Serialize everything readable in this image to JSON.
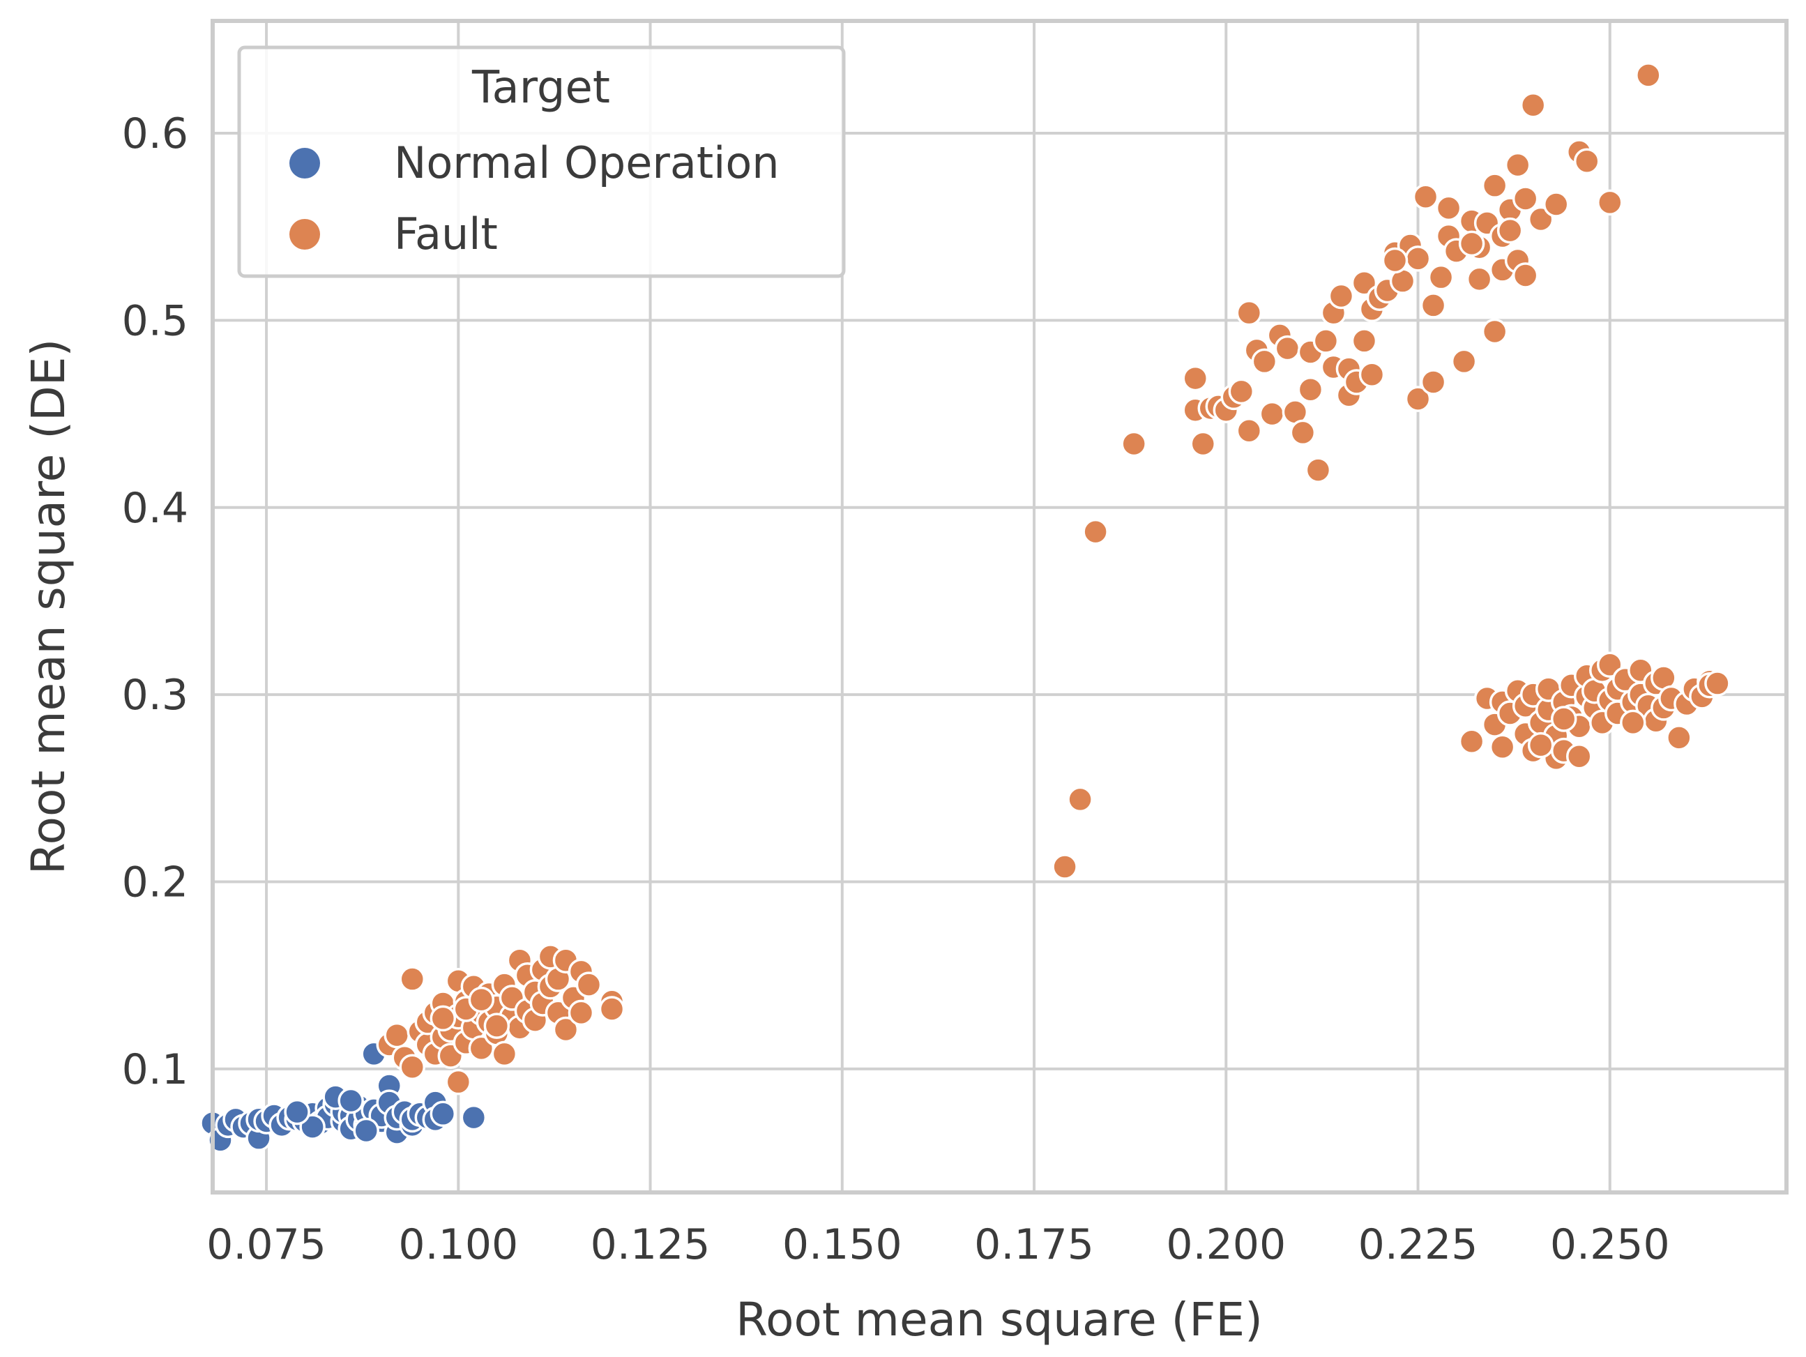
{
  "chart_data": {
    "type": "scatter",
    "title": "",
    "xlabel": "Root mean square (FE)",
    "ylabel": "Root mean square (DE)",
    "xlim": [
      0.068,
      0.273
    ],
    "ylim": [
      0.034,
      0.66
    ],
    "xticks": [
      0.075,
      0.1,
      0.125,
      0.15,
      0.175,
      0.2,
      0.225,
      0.25
    ],
    "xtick_labels": [
      "0.075",
      "0.100",
      "0.125",
      "0.150",
      "0.175",
      "0.200",
      "0.225",
      "0.250"
    ],
    "yticks": [
      0.1,
      0.2,
      0.3,
      0.4,
      0.5,
      0.6
    ],
    "ytick_labels": [
      "0.1",
      "0.2",
      "0.3",
      "0.4",
      "0.5",
      "0.6"
    ],
    "grid": true,
    "legend": {
      "title": "Target",
      "position": "top-left"
    },
    "series": [
      {
        "name": "Normal Operation",
        "color": "#4c72b0",
        "points": [
          [
            0.068,
            0.071
          ],
          [
            0.069,
            0.062
          ],
          [
            0.07,
            0.07
          ],
          [
            0.071,
            0.073
          ],
          [
            0.072,
            0.069
          ],
          [
            0.073,
            0.071
          ],
          [
            0.074,
            0.063
          ],
          [
            0.074,
            0.073
          ],
          [
            0.075,
            0.072
          ],
          [
            0.076,
            0.075
          ],
          [
            0.077,
            0.07
          ],
          [
            0.078,
            0.074
          ],
          [
            0.079,
            0.073
          ],
          [
            0.08,
            0.072
          ],
          [
            0.081,
            0.076
          ],
          [
            0.082,
            0.071
          ],
          [
            0.083,
            0.079
          ],
          [
            0.083,
            0.074
          ],
          [
            0.084,
            0.081
          ],
          [
            0.085,
            0.072
          ],
          [
            0.085,
            0.077
          ],
          [
            0.086,
            0.075
          ],
          [
            0.086,
            0.068
          ],
          [
            0.087,
            0.08
          ],
          [
            0.087,
            0.073
          ],
          [
            0.088,
            0.07
          ],
          [
            0.088,
            0.076
          ],
          [
            0.089,
            0.078
          ],
          [
            0.089,
            0.108
          ],
          [
            0.09,
            0.072
          ],
          [
            0.09,
            0.075
          ],
          [
            0.091,
            0.091
          ],
          [
            0.091,
            0.082
          ],
          [
            0.092,
            0.066
          ],
          [
            0.092,
            0.074
          ],
          [
            0.093,
            0.077
          ],
          [
            0.094,
            0.07
          ],
          [
            0.094,
            0.073
          ],
          [
            0.095,
            0.076
          ],
          [
            0.096,
            0.074
          ],
          [
            0.097,
            0.082
          ],
          [
            0.097,
            0.073
          ],
          [
            0.098,
            0.076
          ],
          [
            0.102,
            0.074
          ],
          [
            0.084,
            0.085
          ],
          [
            0.081,
            0.069
          ],
          [
            0.086,
            0.083
          ],
          [
            0.088,
            0.067
          ],
          [
            0.079,
            0.077
          ]
        ]
      },
      {
        "name": "Fault",
        "color": "#dd8452",
        "points": [
          [
            0.091,
            0.113
          ],
          [
            0.092,
            0.118
          ],
          [
            0.093,
            0.106
          ],
          [
            0.094,
            0.148
          ],
          [
            0.094,
            0.101
          ],
          [
            0.095,
            0.12
          ],
          [
            0.096,
            0.113
          ],
          [
            0.096,
            0.125
          ],
          [
            0.097,
            0.108
          ],
          [
            0.097,
            0.13
          ],
          [
            0.098,
            0.117
          ],
          [
            0.098,
            0.135
          ],
          [
            0.099,
            0.107
          ],
          [
            0.099,
            0.121
          ],
          [
            0.1,
            0.093
          ],
          [
            0.1,
            0.147
          ],
          [
            0.1,
            0.128
          ],
          [
            0.101,
            0.114
          ],
          [
            0.101,
            0.136
          ],
          [
            0.102,
            0.144
          ],
          [
            0.102,
            0.122
          ],
          [
            0.103,
            0.13
          ],
          [
            0.103,
            0.111
          ],
          [
            0.104,
            0.14
          ],
          [
            0.104,
            0.125
          ],
          [
            0.105,
            0.133
          ],
          [
            0.105,
            0.119
          ],
          [
            0.106,
            0.108
          ],
          [
            0.106,
            0.145
          ],
          [
            0.107,
            0.128
          ],
          [
            0.107,
            0.138
          ],
          [
            0.108,
            0.158
          ],
          [
            0.108,
            0.122
          ],
          [
            0.109,
            0.15
          ],
          [
            0.109,
            0.131
          ],
          [
            0.11,
            0.141
          ],
          [
            0.11,
            0.126
          ],
          [
            0.111,
            0.153
          ],
          [
            0.111,
            0.135
          ],
          [
            0.112,
            0.16
          ],
          [
            0.112,
            0.144
          ],
          [
            0.113,
            0.13
          ],
          [
            0.113,
            0.148
          ],
          [
            0.114,
            0.158
          ],
          [
            0.114,
            0.121
          ],
          [
            0.115,
            0.138
          ],
          [
            0.116,
            0.152
          ],
          [
            0.116,
            0.13
          ],
          [
            0.117,
            0.145
          ],
          [
            0.12,
            0.136
          ],
          [
            0.12,
            0.132
          ],
          [
            0.101,
            0.132
          ],
          [
            0.103,
            0.137
          ],
          [
            0.098,
            0.127
          ],
          [
            0.105,
            0.123
          ],
          [
            0.179,
            0.208
          ],
          [
            0.181,
            0.244
          ],
          [
            0.183,
            0.387
          ],
          [
            0.188,
            0.434
          ],
          [
            0.196,
            0.469
          ],
          [
            0.196,
            0.452
          ],
          [
            0.197,
            0.434
          ],
          [
            0.198,
            0.453
          ],
          [
            0.199,
            0.454
          ],
          [
            0.2,
            0.452
          ],
          [
            0.201,
            0.459
          ],
          [
            0.202,
            0.462
          ],
          [
            0.203,
            0.441
          ],
          [
            0.203,
            0.504
          ],
          [
            0.204,
            0.484
          ],
          [
            0.205,
            0.478
          ],
          [
            0.206,
            0.45
          ],
          [
            0.207,
            0.492
          ],
          [
            0.208,
            0.485
          ],
          [
            0.209,
            0.451
          ],
          [
            0.21,
            0.44
          ],
          [
            0.211,
            0.463
          ],
          [
            0.211,
            0.483
          ],
          [
            0.212,
            0.42
          ],
          [
            0.213,
            0.489
          ],
          [
            0.214,
            0.504
          ],
          [
            0.214,
            0.475
          ],
          [
            0.215,
            0.513
          ],
          [
            0.216,
            0.46
          ],
          [
            0.216,
            0.474
          ],
          [
            0.217,
            0.467
          ],
          [
            0.218,
            0.489
          ],
          [
            0.218,
            0.52
          ],
          [
            0.219,
            0.506
          ],
          [
            0.219,
            0.471
          ],
          [
            0.22,
            0.512
          ],
          [
            0.221,
            0.516
          ],
          [
            0.222,
            0.536
          ],
          [
            0.223,
            0.521
          ],
          [
            0.224,
            0.54
          ],
          [
            0.225,
            0.458
          ],
          [
            0.225,
            0.533
          ],
          [
            0.226,
            0.566
          ],
          [
            0.227,
            0.508
          ],
          [
            0.227,
            0.467
          ],
          [
            0.228,
            0.523
          ],
          [
            0.229,
            0.545
          ],
          [
            0.229,
            0.56
          ],
          [
            0.23,
            0.537
          ],
          [
            0.231,
            0.478
          ],
          [
            0.232,
            0.553
          ],
          [
            0.233,
            0.522
          ],
          [
            0.233,
            0.539
          ],
          [
            0.234,
            0.552
          ],
          [
            0.235,
            0.494
          ],
          [
            0.235,
            0.572
          ],
          [
            0.236,
            0.527
          ],
          [
            0.236,
            0.545
          ],
          [
            0.237,
            0.559
          ],
          [
            0.238,
            0.532
          ],
          [
            0.238,
            0.583
          ],
          [
            0.239,
            0.524
          ],
          [
            0.239,
            0.565
          ],
          [
            0.24,
            0.615
          ],
          [
            0.241,
            0.554
          ],
          [
            0.243,
            0.562
          ],
          [
            0.246,
            0.59
          ],
          [
            0.247,
            0.585
          ],
          [
            0.25,
            0.563
          ],
          [
            0.255,
            0.631
          ],
          [
            0.232,
            0.541
          ],
          [
            0.222,
            0.532
          ],
          [
            0.237,
            0.548
          ],
          [
            0.232,
            0.275
          ],
          [
            0.234,
            0.298
          ],
          [
            0.235,
            0.284
          ],
          [
            0.236,
            0.296
          ],
          [
            0.236,
            0.272
          ],
          [
            0.237,
            0.29
          ],
          [
            0.238,
            0.302
          ],
          [
            0.239,
            0.279
          ],
          [
            0.239,
            0.294
          ],
          [
            0.24,
            0.27
          ],
          [
            0.24,
            0.3
          ],
          [
            0.241,
            0.285
          ],
          [
            0.242,
            0.292
          ],
          [
            0.242,
            0.303
          ],
          [
            0.243,
            0.266
          ],
          [
            0.243,
            0.278
          ],
          [
            0.244,
            0.296
          ],
          [
            0.244,
            0.27
          ],
          [
            0.245,
            0.305
          ],
          [
            0.245,
            0.288
          ],
          [
            0.246,
            0.283
          ],
          [
            0.246,
            0.267
          ],
          [
            0.247,
            0.299
          ],
          [
            0.247,
            0.31
          ],
          [
            0.248,
            0.293
          ],
          [
            0.248,
            0.302
          ],
          [
            0.249,
            0.285
          ],
          [
            0.249,
            0.313
          ],
          [
            0.25,
            0.297
          ],
          [
            0.25,
            0.316
          ],
          [
            0.251,
            0.29
          ],
          [
            0.251,
            0.303
          ],
          [
            0.252,
            0.308
          ],
          [
            0.253,
            0.296
          ],
          [
            0.254,
            0.313
          ],
          [
            0.254,
            0.3
          ],
          [
            0.255,
            0.294
          ],
          [
            0.256,
            0.286
          ],
          [
            0.256,
            0.306
          ],
          [
            0.257,
            0.293
          ],
          [
            0.257,
            0.309
          ],
          [
            0.258,
            0.298
          ],
          [
            0.259,
            0.277
          ],
          [
            0.26,
            0.295
          ],
          [
            0.261,
            0.303
          ],
          [
            0.262,
            0.299
          ],
          [
            0.263,
            0.307
          ],
          [
            0.263,
            0.305
          ],
          [
            0.264,
            0.306
          ],
          [
            0.253,
            0.285
          ],
          [
            0.241,
            0.273
          ],
          [
            0.244,
            0.287
          ]
        ]
      }
    ]
  }
}
